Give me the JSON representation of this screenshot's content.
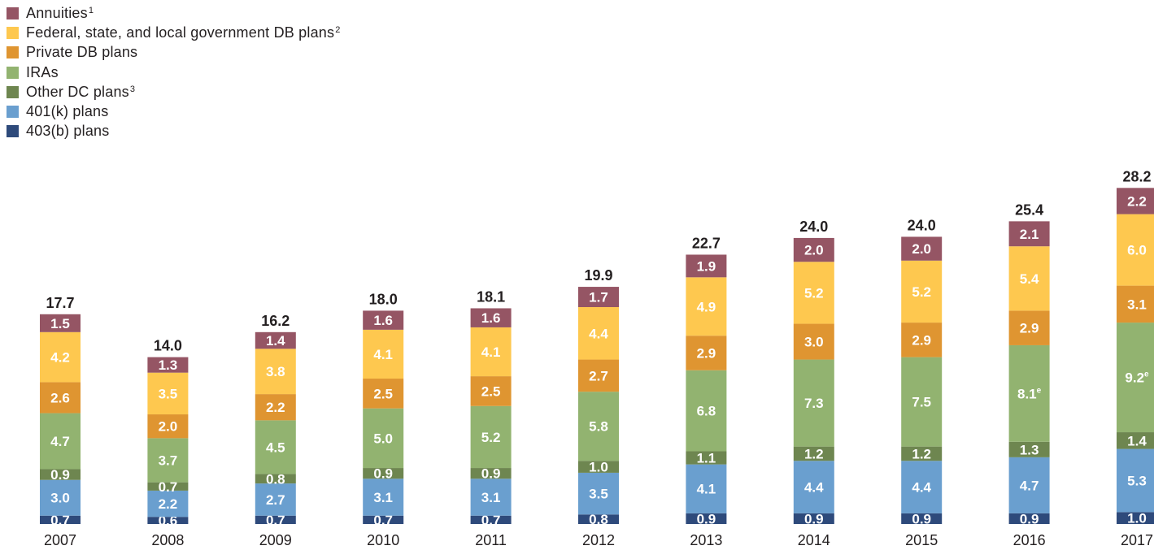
{
  "chart_data": {
    "type": "bar",
    "stacked": true,
    "categories": [
      "2007",
      "2008",
      "2009",
      "2010",
      "2011",
      "2012",
      "2013",
      "2014",
      "2015",
      "2016",
      "2017"
    ],
    "totals": [
      "17.7",
      "14.0",
      "16.2",
      "18.0",
      "18.1",
      "19.9",
      "22.7",
      "24.0",
      "24.0",
      "25.4",
      "28.2"
    ],
    "total_values": [
      17.7,
      14.0,
      16.2,
      18.0,
      18.1,
      19.9,
      22.7,
      24.0,
      24.0,
      25.4,
      28.2
    ],
    "series": [
      {
        "key": "b403",
        "name": "403(b) plans",
        "sup": "",
        "color": "#2e4a7b",
        "values": [
          0.7,
          0.6,
          0.7,
          0.7,
          0.7,
          0.8,
          0.9,
          0.9,
          0.9,
          0.9,
          1.0
        ],
        "labels": [
          "0.7",
          "0.6",
          "0.7",
          "0.7",
          "0.7",
          "0.8",
          "0.9",
          "0.9",
          "0.9",
          "0.9",
          "1.0"
        ],
        "label_sups": [
          "",
          "",
          "",
          "",
          "",
          "",
          "",
          "",
          "",
          "",
          ""
        ]
      },
      {
        "key": "k401",
        "name": "401(k) plans",
        "sup": "",
        "color": "#6a9fcf",
        "values": [
          3.0,
          2.2,
          2.7,
          3.1,
          3.1,
          3.5,
          4.1,
          4.4,
          4.4,
          4.7,
          5.3
        ],
        "labels": [
          "3.0",
          "2.2",
          "2.7",
          "3.1",
          "3.1",
          "3.5",
          "4.1",
          "4.4",
          "4.4",
          "4.7",
          "5.3"
        ],
        "label_sups": [
          "",
          "",
          "",
          "",
          "",
          "",
          "",
          "",
          "",
          "",
          ""
        ]
      },
      {
        "key": "otherdc",
        "name": "Other DC plans",
        "sup": "3",
        "color": "#6e8650",
        "values": [
          0.9,
          0.7,
          0.8,
          0.9,
          0.9,
          1.0,
          1.1,
          1.2,
          1.2,
          1.3,
          1.4
        ],
        "labels": [
          "0.9",
          "0.7",
          "0.8",
          "0.9",
          "0.9",
          "1.0",
          "1.1",
          "1.2",
          "1.2",
          "1.3",
          "1.4"
        ],
        "label_sups": [
          "",
          "",
          "",
          "",
          "",
          "",
          "",
          "",
          "",
          "",
          ""
        ]
      },
      {
        "key": "ira",
        "name": "IRAs",
        "sup": "",
        "color": "#92b370",
        "values": [
          4.7,
          3.7,
          4.5,
          5.0,
          5.2,
          5.8,
          6.8,
          7.3,
          7.5,
          8.1,
          9.2
        ],
        "labels": [
          "4.7",
          "3.7",
          "4.5",
          "5.0",
          "5.2",
          "5.8",
          "6.8",
          "7.3",
          "7.5",
          "8.1",
          "9.2"
        ],
        "label_sups": [
          "",
          "",
          "",
          "",
          "",
          "",
          "",
          "",
          "",
          "e",
          "e"
        ]
      },
      {
        "key": "privdb",
        "name": "Private DB plans",
        "sup": "",
        "color": "#df9531",
        "values": [
          2.6,
          2.0,
          2.2,
          2.5,
          2.5,
          2.7,
          2.9,
          3.0,
          2.9,
          2.9,
          3.1
        ],
        "labels": [
          "2.6",
          "2.0",
          "2.2",
          "2.5",
          "2.5",
          "2.7",
          "2.9",
          "3.0",
          "2.9",
          "2.9",
          "3.1"
        ],
        "label_sups": [
          "",
          "",
          "",
          "",
          "",
          "",
          "",
          "",
          "",
          "",
          ""
        ]
      },
      {
        "key": "govdb",
        "name": "Federal, state, and local government DB plans",
        "sup": "2",
        "color": "#fec84f",
        "values": [
          4.2,
          3.5,
          3.8,
          4.1,
          4.1,
          4.4,
          4.9,
          5.2,
          5.2,
          5.4,
          6.0
        ],
        "labels": [
          "4.2",
          "3.5",
          "3.8",
          "4.1",
          "4.1",
          "4.4",
          "4.9",
          "5.2",
          "5.2",
          "5.4",
          "6.0"
        ],
        "label_sups": [
          "",
          "",
          "",
          "",
          "",
          "",
          "",
          "",
          "",
          "",
          ""
        ]
      },
      {
        "key": "annuities",
        "name": "Annuities",
        "sup": "1",
        "color": "#955564",
        "values": [
          1.5,
          1.3,
          1.4,
          1.6,
          1.6,
          1.7,
          1.9,
          2.0,
          2.0,
          2.1,
          2.2
        ],
        "labels": [
          "1.5",
          "1.3",
          "1.4",
          "1.6",
          "1.6",
          "1.7",
          "1.9",
          "2.0",
          "2.0",
          "2.1",
          "2.2"
        ],
        "label_sups": [
          "",
          "",
          "",
          "",
          "",
          "",
          "",
          "",
          "",
          "",
          ""
        ]
      }
    ],
    "legend_order": [
      "annuities",
      "govdb",
      "privdb",
      "ira",
      "otherdc",
      "k401",
      "b403"
    ],
    "legend_position": "top-left"
  }
}
